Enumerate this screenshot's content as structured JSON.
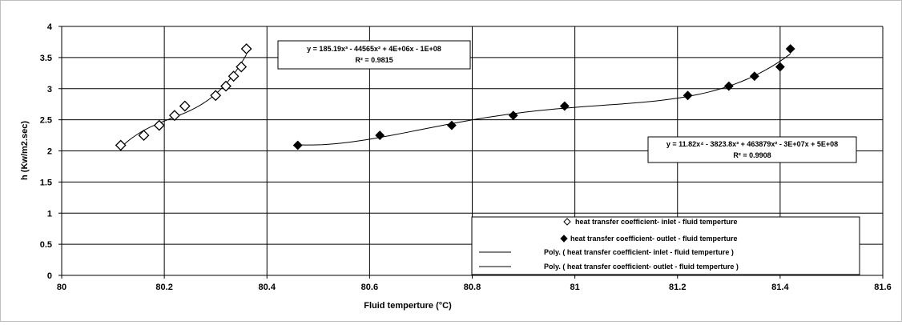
{
  "chart_data": {
    "type": "scatter",
    "title": "",
    "xlabel": "Fluid temperture  (°C)",
    "ylabel": "h (Kw/m2.sec)",
    "xlim": [
      80,
      81.6
    ],
    "ylim": [
      0,
      4
    ],
    "x_ticks": [
      "80",
      "80.2",
      "80.4",
      "80.6",
      "80.8",
      "81",
      "81.2",
      "81.4",
      "81.6"
    ],
    "y_ticks": [
      "0",
      "0.5",
      "1",
      "1.5",
      "2",
      "2.5",
      "3",
      "3.5",
      "4"
    ],
    "grid": true,
    "legend_position": "bottom-right",
    "colors": {
      "markers": "#000000",
      "grid": "#000000",
      "trend": "#000000"
    },
    "series": [
      {
        "name": "heat transfer coefficient- inlet  - fluid temperture",
        "marker": "open-diamond",
        "x": [
          80.115,
          80.16,
          80.19,
          80.22,
          80.24,
          80.3,
          80.32,
          80.335,
          80.35,
          80.36
        ],
        "y": [
          2.09,
          2.25,
          2.41,
          2.57,
          2.72,
          2.89,
          3.04,
          3.2,
          3.35,
          3.64
        ]
      },
      {
        "name": "heat transfer coefficient- outlet  - fluid temperture",
        "marker": "filled-diamond",
        "x": [
          80.46,
          80.62,
          80.76,
          80.88,
          80.98,
          81.22,
          81.3,
          81.35,
          81.4,
          81.42
        ],
        "y": [
          2.09,
          2.25,
          2.41,
          2.57,
          2.72,
          2.89,
          3.04,
          3.2,
          3.35,
          3.64
        ]
      }
    ],
    "trendlines": [
      {
        "name": "Poly. ( heat transfer coefficient- inlet  - fluid temperture )",
        "series_index": 0,
        "equation": "y = 185.19x³ - 44565x² + 4E+06x - 1E+08",
        "r2": "R² = 0.9815"
      },
      {
        "name": "Poly. ( heat transfer coefficient- outlet  - fluid temperture )",
        "series_index": 1,
        "equation": "y = 11.82x⁴ - 3823.8x³ + 463879x² - 3E+07x + 5E+08",
        "r2": "R² = 0.9908"
      }
    ]
  }
}
